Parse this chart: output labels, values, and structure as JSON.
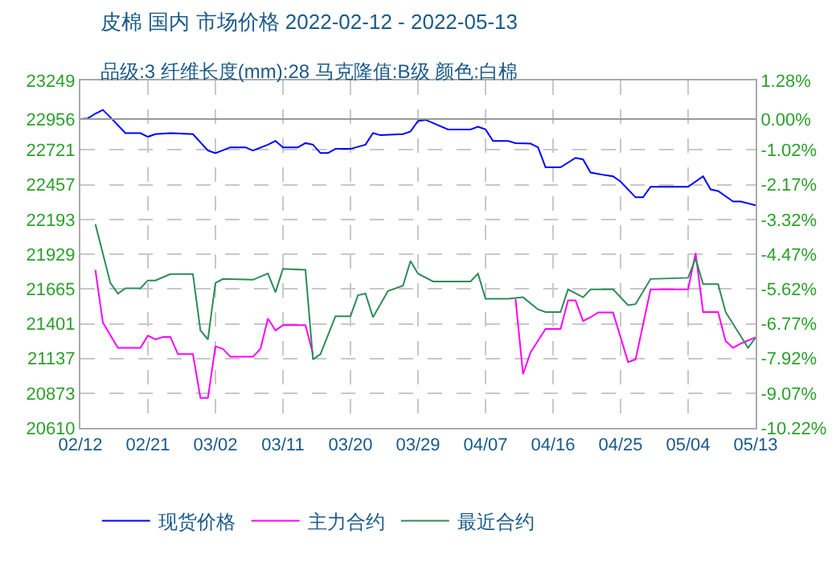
{
  "chart_data": {
    "type": "line",
    "title": "皮棉 国内 市场价格 2022-02-12 - 2022-05-13",
    "subtitle": "品级:3 纤维长度(mm):28 马克隆值:B级 颜色:白棉",
    "xlim": [
      "2022-02-12",
      "2022-05-13"
    ],
    "xticks": [
      {
        "value": "2022-02-12",
        "label": "02/12"
      },
      {
        "value": "2022-02-21",
        "label": "02/21"
      },
      {
        "value": "2022-03-02",
        "label": "03/02"
      },
      {
        "value": "2022-03-11",
        "label": "03/11"
      },
      {
        "value": "2022-03-20",
        "label": "03/20"
      },
      {
        "value": "2022-03-29",
        "label": "03/29"
      },
      {
        "value": "2022-04-07",
        "label": "04/07"
      },
      {
        "value": "2022-04-16",
        "label": "04/16"
      },
      {
        "value": "2022-04-25",
        "label": "04/25"
      },
      {
        "value": "2022-05-04",
        "label": "05/04"
      },
      {
        "value": "2022-05-13",
        "label": "05/13"
      }
    ],
    "ylim": [
      20610,
      23249
    ],
    "yticks": [
      20610,
      20873,
      21137,
      21401,
      21665,
      21929,
      22193,
      22457,
      22721,
      22956,
      23249
    ],
    "y2lim": [
      -10.22,
      1.28
    ],
    "y2ticks": [
      {
        "value": -10.22,
        "label": "-10.22%"
      },
      {
        "value": -9.07,
        "label": "-9.07%"
      },
      {
        "value": -7.92,
        "label": "-7.92%"
      },
      {
        "value": -6.77,
        "label": "-6.77%"
      },
      {
        "value": -5.62,
        "label": "-5.62%"
      },
      {
        "value": -4.47,
        "label": "-4.47%"
      },
      {
        "value": -3.32,
        "label": "-3.32%"
      },
      {
        "value": -2.17,
        "label": "-2.17%"
      },
      {
        "value": -1.02,
        "label": "-1.02%"
      },
      {
        "value": 0,
        "label": "0.00%"
      },
      {
        "value": 1.28,
        "label": "1.28%"
      }
    ],
    "ref_lines": [
      {
        "axis": "y",
        "value": 22956,
        "color": "#999999",
        "line_style": "solid"
      }
    ],
    "grid": true,
    "legend": "bottom",
    "marker": "none",
    "line_style": "solid",
    "series": [
      {
        "name": "现货价格",
        "color": "#0000ff",
        "x": [
          "2022-02-12",
          "2022-02-13",
          "2022-02-14",
          "2022-02-15",
          "2022-02-16",
          "2022-02-18",
          "2022-02-20",
          "2022-02-21",
          "2022-02-22",
          "2022-02-24",
          "2022-02-27",
          "2022-03-01",
          "2022-03-02",
          "2022-03-04",
          "2022-03-06",
          "2022-03-07",
          "2022-03-09",
          "2022-03-10",
          "2022-03-11",
          "2022-03-13",
          "2022-03-14",
          "2022-03-15",
          "2022-03-16",
          "2022-03-17",
          "2022-03-18",
          "2022-03-20",
          "2022-03-22",
          "2022-03-23",
          "2022-03-24",
          "2022-03-27",
          "2022-03-28",
          "2022-03-29",
          "2022-03-30",
          "2022-04-02",
          "2022-04-05",
          "2022-04-06",
          "2022-04-07",
          "2022-04-08",
          "2022-04-10",
          "2022-04-11",
          "2022-04-13",
          "2022-04-14",
          "2022-04-15",
          "2022-04-17",
          "2022-04-19",
          "2022-04-20",
          "2022-04-21",
          "2022-04-23",
          "2022-04-24",
          "2022-04-25",
          "2022-04-27",
          "2022-04-28",
          "2022-04-29",
          "2022-05-04",
          "2022-05-06",
          "2022-05-07",
          "2022-05-08",
          "2022-05-10",
          "2022-05-11",
          "2022-05-13"
        ],
        "values": [
          22956,
          22961,
          22997,
          23025,
          22969,
          22849,
          22849,
          22821,
          22841,
          22849,
          22841,
          22717,
          22697,
          22741,
          22741,
          22717,
          22761,
          22789,
          22741,
          22741,
          22773,
          22761,
          22697,
          22697,
          22729,
          22729,
          22761,
          22849,
          22833,
          22841,
          22861,
          22941,
          22950,
          22877,
          22877,
          22897,
          22877,
          22789,
          22789,
          22773,
          22769,
          22741,
          22589,
          22589,
          22661,
          22649,
          22549,
          22529,
          22521,
          22481,
          22361,
          22361,
          22441,
          22441,
          22521,
          22421,
          22409,
          22329,
          22329,
          22301
        ]
      },
      {
        "name": "主力合约",
        "color": "#ff00ff",
        "x": [
          "2022-02-14",
          "2022-02-15",
          "2022-02-17",
          "2022-02-20",
          "2022-02-21",
          "2022-02-22",
          "2022-02-23",
          "2022-02-24",
          "2022-02-25",
          "2022-02-27",
          "2022-02-28",
          "2022-03-01",
          "2022-03-02",
          "2022-03-03",
          "2022-03-04",
          "2022-03-07",
          "2022-03-08",
          "2022-03-09",
          "2022-03-10",
          "2022-03-11",
          "2022-03-14",
          "2022-03-15",
          "2022-03-29",
          "2022-04-11",
          "2022-04-12",
          "2022-04-13",
          "2022-04-15",
          "2022-04-17",
          "2022-04-18",
          "2022-04-19",
          "2022-04-20",
          "2022-04-21",
          "2022-04-22",
          "2022-04-24",
          "2022-04-26",
          "2022-04-27",
          "2022-04-29",
          "2022-05-04",
          "2022-05-05",
          "2022-05-06",
          "2022-05-08",
          "2022-05-09",
          "2022-05-10",
          "2022-05-11",
          "2022-05-13"
        ],
        "values": [
          21810,
          21410,
          21218,
          21218,
          21310,
          21282,
          21300,
          21300,
          21170,
          21170,
          20838,
          20838,
          21230,
          21210,
          21150,
          21150,
          21210,
          21441,
          21350,
          21390,
          21390,
          21170,
          null,
          21590,
          21018,
          21183,
          21362,
          21362,
          21578,
          21578,
          21422,
          21450,
          21486,
          21486,
          21110,
          21130,
          21662,
          21662,
          21938,
          21490,
          21490,
          21270,
          21218,
          21250,
          21297
        ]
      },
      {
        "name": "最近合约",
        "color": "#2e8b57",
        "x": [
          "2022-02-14",
          "2022-02-16",
          "2022-02-17",
          "2022-02-18",
          "2022-02-20",
          "2022-02-21",
          "2022-02-22",
          "2022-02-24",
          "2022-02-27",
          "2022-02-28",
          "2022-03-01",
          "2022-03-02",
          "2022-03-03",
          "2022-03-07",
          "2022-03-09",
          "2022-03-10",
          "2022-03-11",
          "2022-03-14",
          "2022-03-15",
          "2022-03-16",
          "2022-03-18",
          "2022-03-20",
          "2022-03-21",
          "2022-03-22",
          "2022-03-23",
          "2022-03-25",
          "2022-03-27",
          "2022-03-28",
          "2022-03-29",
          "2022-03-31",
          "2022-04-05",
          "2022-04-06",
          "2022-04-07",
          "2022-04-10",
          "2022-04-12",
          "2022-04-14",
          "2022-04-15",
          "2022-04-17",
          "2022-04-18",
          "2022-04-20",
          "2022-04-21",
          "2022-04-24",
          "2022-04-26",
          "2022-04-27",
          "2022-04-29",
          "2022-05-04",
          "2022-05-05",
          "2022-05-06",
          "2022-05-08",
          "2022-05-09",
          "2022-05-12",
          "2022-05-13"
        ],
        "values": [
          22157,
          21710,
          21630,
          21670,
          21670,
          21730,
          21730,
          21778,
          21778,
          21350,
          21282,
          21710,
          21741,
          21735,
          21782,
          21640,
          21818,
          21810,
          21130,
          21170,
          21458,
          21458,
          21618,
          21630,
          21450,
          21650,
          21690,
          21878,
          21782,
          21722,
          21722,
          21782,
          21590,
          21590,
          21602,
          21510,
          21490,
          21490,
          21662,
          21602,
          21662,
          21662,
          21542,
          21550,
          21741,
          21750,
          21898,
          21702,
          21702,
          21490,
          21218,
          21297
        ]
      }
    ]
  }
}
